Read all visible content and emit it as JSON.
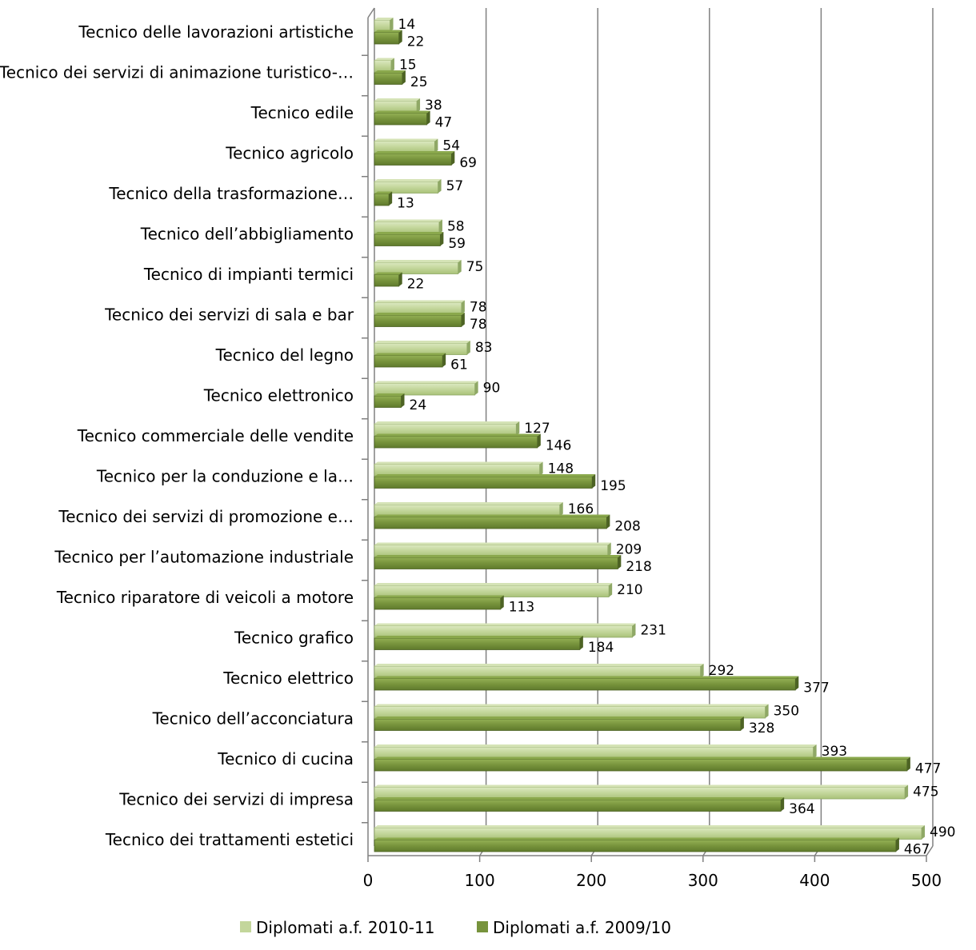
{
  "chart_data": {
    "type": "bar",
    "orientation": "horizontal",
    "title": "",
    "xlabel": "",
    "ylabel": "",
    "xlim": [
      0,
      500
    ],
    "xticks": [
      0,
      100,
      200,
      300,
      400,
      500
    ],
    "grid": "vertical",
    "legend_position": "bottom",
    "categories": [
      "Tecnico delle lavorazioni artistiche",
      "Tecnico dei servizi di animazione turistico-…",
      "Tecnico edile",
      "Tecnico agricolo",
      "Tecnico della trasformazione…",
      "Tecnico dell’abbigliamento",
      "Tecnico di impianti termici",
      "Tecnico dei servizi di sala e bar",
      "Tecnico del legno",
      "Tecnico elettronico",
      "Tecnico commerciale delle vendite",
      "Tecnico per la conduzione e la…",
      "Tecnico dei servizi di promozione e…",
      "Tecnico per l’automazione industriale",
      "Tecnico riparatore di veicoli a motore",
      "Tecnico grafico",
      "Tecnico elettrico",
      "Tecnico dell’acconciatura",
      "Tecnico di cucina",
      "Tecnico dei servizi di impresa",
      "Tecnico dei trattamenti estetici"
    ],
    "series": [
      {
        "name": "Diplomati a.f.  2010-11",
        "color": "#c3d69b",
        "values": [
          14,
          15,
          38,
          54,
          57,
          58,
          75,
          78,
          83,
          90,
          127,
          148,
          166,
          209,
          210,
          231,
          292,
          350,
          393,
          475,
          490
        ]
      },
      {
        "name": "Diplomati a.f. 2009/10",
        "color": "#77933c",
        "values": [
          22,
          25,
          47,
          69,
          13,
          59,
          22,
          78,
          61,
          24,
          146,
          195,
          208,
          218,
          113,
          184,
          377,
          328,
          477,
          364,
          467
        ]
      }
    ]
  }
}
